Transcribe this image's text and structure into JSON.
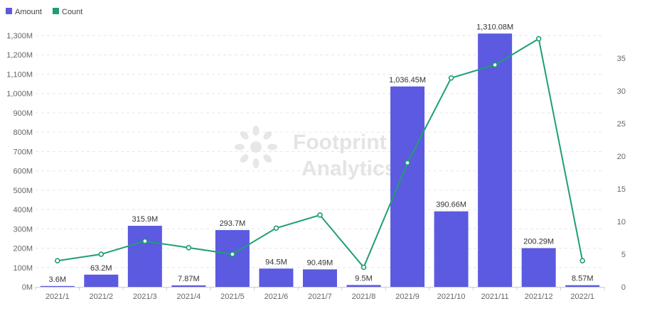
{
  "colors": {
    "bar": "#5b5ae0",
    "line": "#1f9e75",
    "grid": "#e6e6e6"
  },
  "legend": [
    {
      "name": "Amount",
      "color": "#5b5ae0",
      "shape": "square"
    },
    {
      "name": "Count",
      "color": "#1f9e75",
      "shape": "square"
    }
  ],
  "watermark": {
    "line1": "Footprint",
    "line2": "Analytics",
    "icon": "footprint-logo-icon"
  },
  "chart_data": {
    "type": "bar",
    "categories": [
      "2021/1",
      "2021/2",
      "2021/3",
      "2021/4",
      "2021/5",
      "2021/6",
      "2021/7",
      "2021/8",
      "2021/9",
      "2021/10",
      "2021/11",
      "2021/12",
      "2022/1"
    ],
    "series": [
      {
        "name": "Amount",
        "type": "bar",
        "axis": "left",
        "values": [
          3.6,
          63.2,
          315.9,
          7.87,
          293.7,
          94.5,
          90.49,
          9.5,
          1036.45,
          390.66,
          1310.08,
          200.29,
          8.57
        ],
        "labels": [
          "3.6M",
          "63.2M",
          "315.9M",
          "7.87M",
          "293.7M",
          "94.5M",
          "90.49M",
          "9.5M",
          "1,036.45M",
          "390.66M",
          "1,310.08M",
          "200.29M",
          "8.57M"
        ]
      },
      {
        "name": "Count",
        "type": "line",
        "axis": "right",
        "values": [
          4,
          5,
          7,
          6,
          5,
          9,
          11,
          3,
          19,
          32,
          34,
          38,
          4
        ]
      }
    ],
    "y_left": {
      "ylim": [
        0,
        1300
      ],
      "ticks": [
        0,
        100,
        200,
        300,
        400,
        500,
        600,
        700,
        800,
        900,
        1000,
        1100,
        1200,
        1300
      ],
      "tick_labels": [
        "0M",
        "100M",
        "200M",
        "300M",
        "400M",
        "500M",
        "600M",
        "700M",
        "800M",
        "900M",
        "1,000M",
        "1,100M",
        "1,200M",
        "1,300M"
      ]
    },
    "y_right": {
      "ylim": [
        0,
        38.5
      ],
      "ticks": [
        0,
        5,
        10,
        15,
        20,
        25,
        30,
        35
      ],
      "tick_labels": [
        "0",
        "5",
        "10",
        "15",
        "20",
        "25",
        "30",
        "35"
      ]
    },
    "grid": true,
    "legend_position": "top-left"
  }
}
